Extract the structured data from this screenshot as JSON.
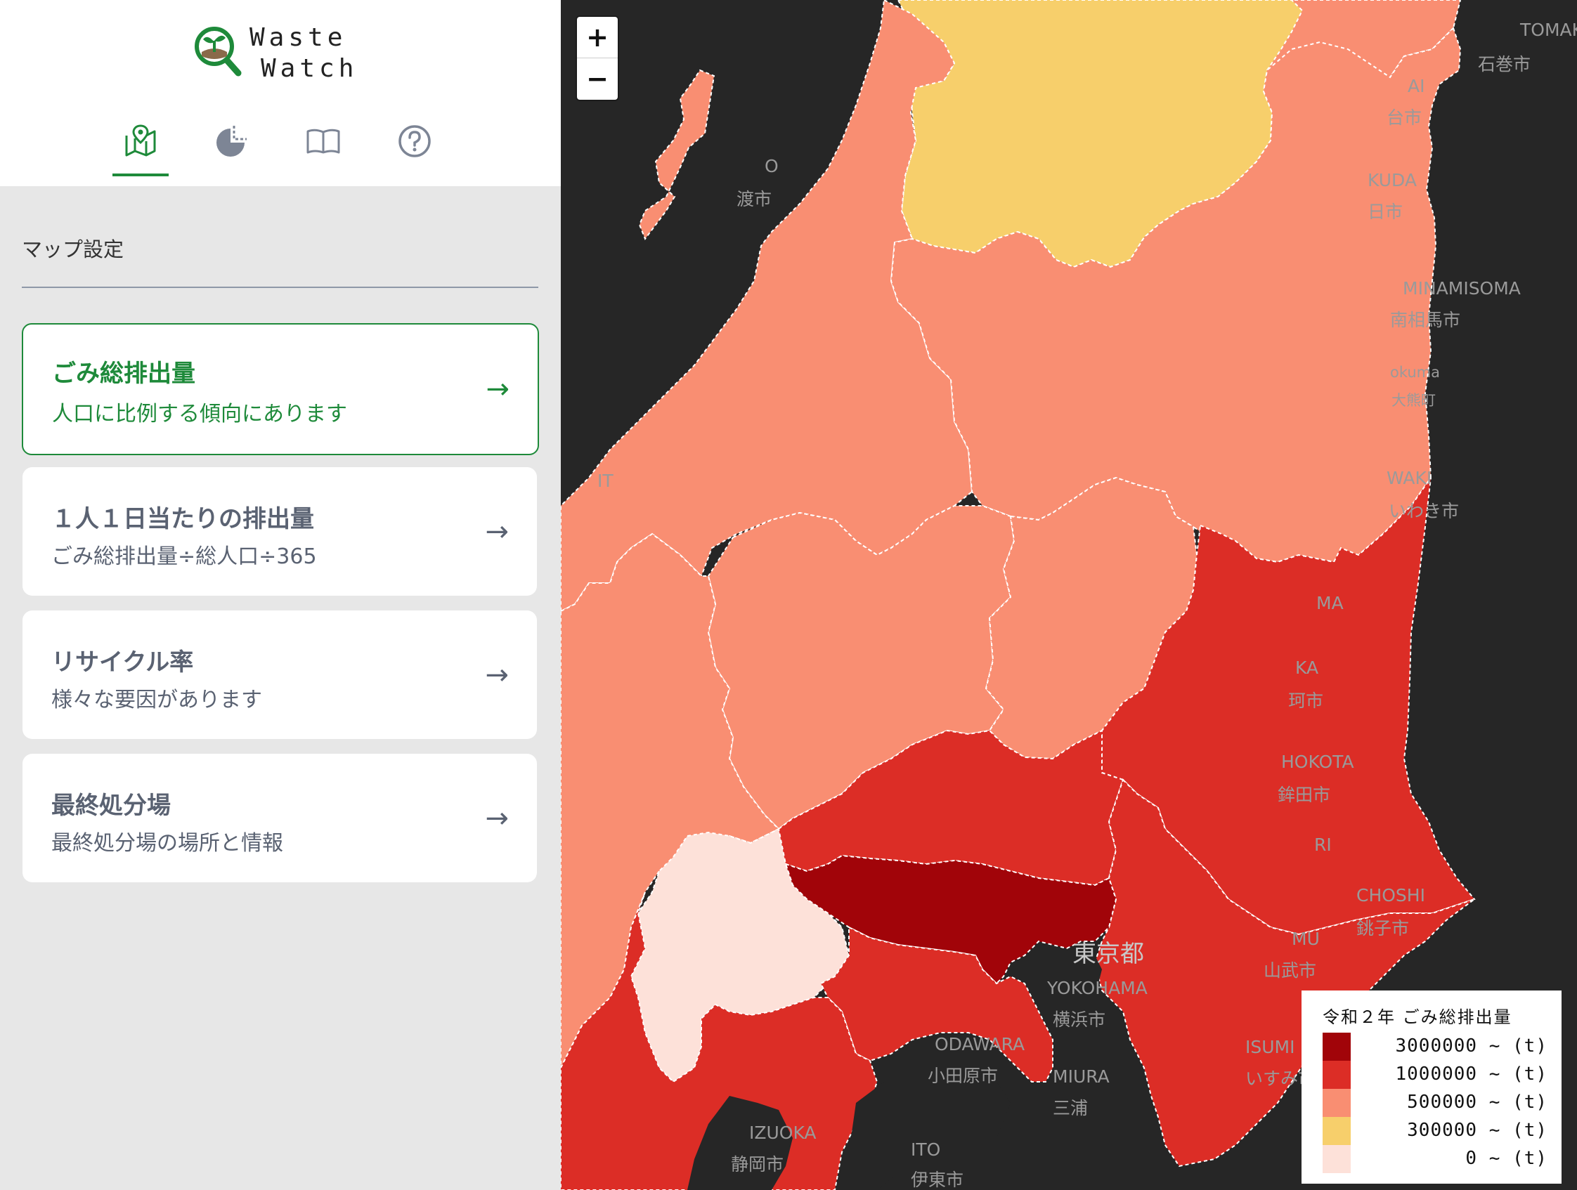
{
  "app": {
    "logo_line1": "Waste",
    "logo_line2": "Watch"
  },
  "nav": {
    "tabs": [
      {
        "icon": "map-icon",
        "active": true
      },
      {
        "icon": "pie-chart-icon",
        "active": false
      },
      {
        "icon": "book-icon",
        "active": false
      },
      {
        "icon": "help-icon",
        "active": false
      }
    ],
    "accent": "#1e8a3a"
  },
  "sidebar": {
    "section_title": "マップ設定",
    "cards": [
      {
        "title": "ごみ総排出量",
        "subtitle": "人口に比例する傾向にあります",
        "active": true
      },
      {
        "title": "１人１日当たりの排出量",
        "subtitle": "ごみ総排出量÷総人口÷365",
        "active": false
      },
      {
        "title": "リサイクル率",
        "subtitle": "様々な要因があります",
        "active": false
      },
      {
        "title": "最終処分場",
        "subtitle": "最終処分場の場所と情報",
        "active": false
      }
    ],
    "arrow": "→"
  },
  "map": {
    "zoom_in": "+",
    "zoom_out": "−",
    "place_labels": [
      "TOMAKO",
      "石巻市",
      "AI",
      "台市",
      "KUDA",
      "日市",
      "MINAMISOMA",
      "南相馬市",
      "okuma",
      "大熊町",
      "WAKI",
      "いわき市",
      "MA",
      "KA",
      "珂市",
      "HOKOTA",
      "鉾田市",
      "RI",
      "CHOSHI",
      "銚子市",
      "MU",
      "山武市",
      "東京都",
      "YOKOHAMA",
      "横浜市",
      "ODAWARA",
      "小田原市",
      "MIURA",
      "三浦",
      "ISUMI",
      "いすみ市",
      "IZUOKA",
      "静岡市",
      "ITO",
      "伊東市",
      "O",
      "渡市",
      "IT"
    ],
    "regions": [
      {
        "name": "Yamagata",
        "color": "#f7cf6b"
      },
      {
        "name": "Miyagi",
        "color": "#f98e72"
      },
      {
        "name": "Niigata",
        "color": "#f98e72"
      },
      {
        "name": "Fukushima",
        "color": "#f98e72"
      },
      {
        "name": "Tochigi",
        "color": "#f98e72"
      },
      {
        "name": "Gunma",
        "color": "#f98e72"
      },
      {
        "name": "Nagano",
        "color": "#f98e72"
      },
      {
        "name": "Ibaraki",
        "color": "#dc2d26"
      },
      {
        "name": "Saitama",
        "color": "#dc2d26"
      },
      {
        "name": "Chiba",
        "color": "#dc2d26"
      },
      {
        "name": "Kanagawa",
        "color": "#dc2d26"
      },
      {
        "name": "Shizuoka",
        "color": "#dc2d26"
      },
      {
        "name": "Tokyo",
        "color": "#a10409"
      },
      {
        "name": "Yamanashi",
        "color": "#fde1d9"
      }
    ]
  },
  "legend": {
    "title": "令和２年 ごみ総排出量",
    "items": [
      {
        "label": "3000000 ~ (t)",
        "color": "#a10409"
      },
      {
        "label": "1000000 ~ (t)",
        "color": "#dc2d26"
      },
      {
        "label": "500000 ~ (t)",
        "color": "#f98e72"
      },
      {
        "label": "300000 ~ (t)",
        "color": "#f7cf6b"
      },
      {
        "label": "0 ~ (t)",
        "color": "#fde1d9"
      }
    ]
  }
}
